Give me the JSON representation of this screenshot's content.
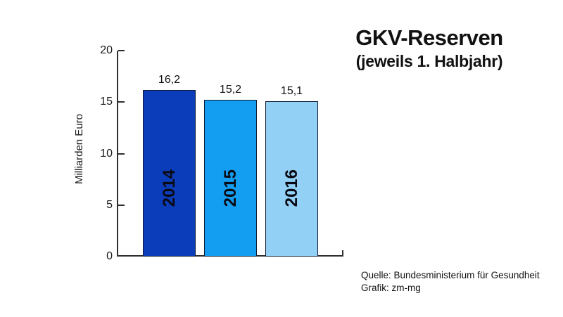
{
  "page": {
    "background": "#ffffff"
  },
  "chart_data": {
    "type": "bar",
    "title": "GKV-Reserven",
    "subtitle": "(jeweils 1. Halbjahr)",
    "ylabel": "Milliarden Euro",
    "categories": [
      "2014",
      "2015",
      "2016"
    ],
    "values": [
      16.2,
      15.2,
      15.1
    ],
    "value_labels": [
      "16,2",
      "15,2",
      "15,1"
    ],
    "yticks": [
      0,
      5,
      10,
      15,
      20
    ],
    "ylim": [
      0,
      20
    ],
    "grid": false,
    "legend": false,
    "bar_colors": [
      "#0b3cba",
      "#149ef2",
      "#92d0f6"
    ],
    "bar_border_color": "#0e1b33",
    "axis_color": "#2e2e2e",
    "text_color": "#1a1a1a",
    "source_line1": "Quelle: Bundesministerium für Gesundheit",
    "source_line2": "Grafik: zm-mg"
  }
}
